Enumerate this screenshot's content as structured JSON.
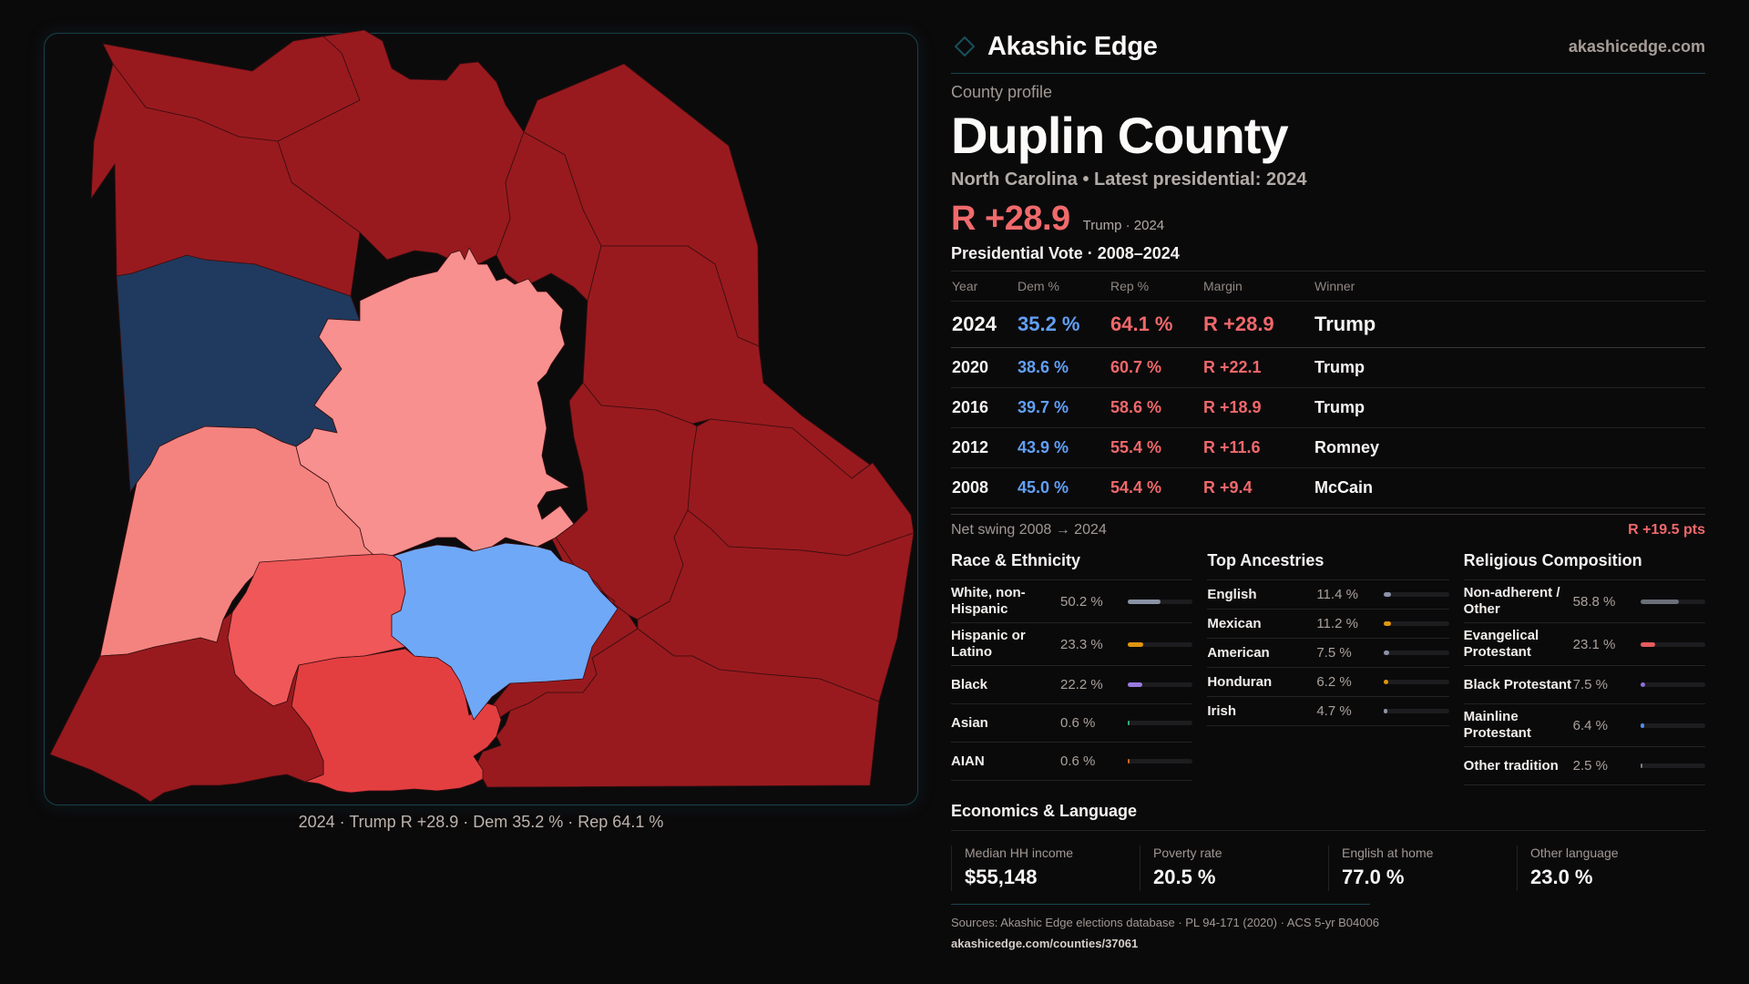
{
  "brand": {
    "name": "Akashic Edge",
    "site": "akashicedge.com",
    "accent": "#17505c"
  },
  "header": {
    "eyebrow": "County profile",
    "title": "Duplin County",
    "subtitle": "North Carolina • Latest presidential: 2024",
    "headline_margin": "R +28.9",
    "headline_note": "Trump · 2024"
  },
  "map": {
    "caption": "2024 · Trump R +28.9 · Dem 35.2 % · Rep 64.1 %",
    "colors": {
      "strong_r": "#981a1e",
      "lean_r_light": "#f7908f",
      "lean_r_mid": "#f4837f",
      "likely_r": "#ef5758",
      "solid_r": "#e33f41",
      "lean_d": "#6fa8f7",
      "strong_d": "#1f3a5e"
    }
  },
  "votes": {
    "title": "Presidential Vote · 2008–2024",
    "columns": [
      "Year",
      "Dem %",
      "Rep %",
      "Margin",
      "Winner"
    ],
    "rows": [
      {
        "year": "2024",
        "dem": "35.2 %",
        "rep": "64.1 %",
        "margin": "R +28.9",
        "winner": "Trump"
      },
      {
        "year": "2020",
        "dem": "38.6 %",
        "rep": "60.7 %",
        "margin": "R +22.1",
        "winner": "Trump"
      },
      {
        "year": "2016",
        "dem": "39.7 %",
        "rep": "58.6 %",
        "margin": "R +18.9",
        "winner": "Trump"
      },
      {
        "year": "2012",
        "dem": "43.9 %",
        "rep": "55.4 %",
        "margin": "R +11.6",
        "winner": "Romney"
      },
      {
        "year": "2008",
        "dem": "45.0 %",
        "rep": "54.4 %",
        "margin": "R +9.4",
        "winner": "McCain"
      }
    ],
    "swing_label": "Net swing 2008 → 2024",
    "swing_value": "R +19.5 pts"
  },
  "race": {
    "title": "Race & Ethnicity",
    "items": [
      {
        "label": "White, non-Hispanic",
        "value": "50.2 %",
        "pct": 50.2,
        "color": "#8a93a5"
      },
      {
        "label": "Hispanic or Latino",
        "value": "23.3 %",
        "pct": 23.3,
        "color": "#e0950f"
      },
      {
        "label": "Black",
        "value": "22.2 %",
        "pct": 22.2,
        "color": "#9a7ae0"
      },
      {
        "label": "Asian",
        "value": "0.6 %",
        "pct": 0.6,
        "color": "#2fb37a"
      },
      {
        "label": "AIAN",
        "value": "0.6 %",
        "pct": 0.6,
        "color": "#d9651c"
      }
    ]
  },
  "ancestry": {
    "title": "Top Ancestries",
    "items": [
      {
        "label": "English",
        "value": "11.4 %",
        "pct": 11.4,
        "color": "#8a93a5"
      },
      {
        "label": "Mexican",
        "value": "11.2 %",
        "pct": 11.2,
        "color": "#e0950f"
      },
      {
        "label": "American",
        "value": "7.5 %",
        "pct": 7.5,
        "color": "#8a93a5"
      },
      {
        "label": "Honduran",
        "value": "6.2 %",
        "pct": 6.2,
        "color": "#e0950f"
      },
      {
        "label": "Irish",
        "value": "4.7 %",
        "pct": 4.7,
        "color": "#8a93a5"
      }
    ]
  },
  "religion": {
    "title": "Religious Composition",
    "items": [
      {
        "label": "Non-adherent / Other",
        "value": "58.8 %",
        "pct": 58.8,
        "color": "#6b6f79"
      },
      {
        "label": "Evangelical Protestant",
        "value": "23.1 %",
        "pct": 23.1,
        "color": "#e55b5e"
      },
      {
        "label": "Black Protestant",
        "value": "7.5 %",
        "pct": 7.5,
        "color": "#8f6fdc"
      },
      {
        "label": "Mainline Protestant",
        "value": "6.4 %",
        "pct": 6.4,
        "color": "#4f8ee8"
      },
      {
        "label": "Other tradition",
        "value": "2.5 %",
        "pct": 2.5,
        "color": "#7a7f88"
      }
    ]
  },
  "economics": {
    "title": "Economics & Language",
    "stats": [
      {
        "label": "Median HH income",
        "value": "$55,148"
      },
      {
        "label": "Poverty rate",
        "value": "20.5 %"
      },
      {
        "label": "English at home",
        "value": "77.0 %"
      },
      {
        "label": "Other language",
        "value": "23.0 %"
      }
    ]
  },
  "footer": {
    "sources": "Sources: Akashic Edge elections database · PL 94-171 (2020) · ACS 5-yr B04006",
    "url": "akashicedge.com/counties/37061"
  }
}
